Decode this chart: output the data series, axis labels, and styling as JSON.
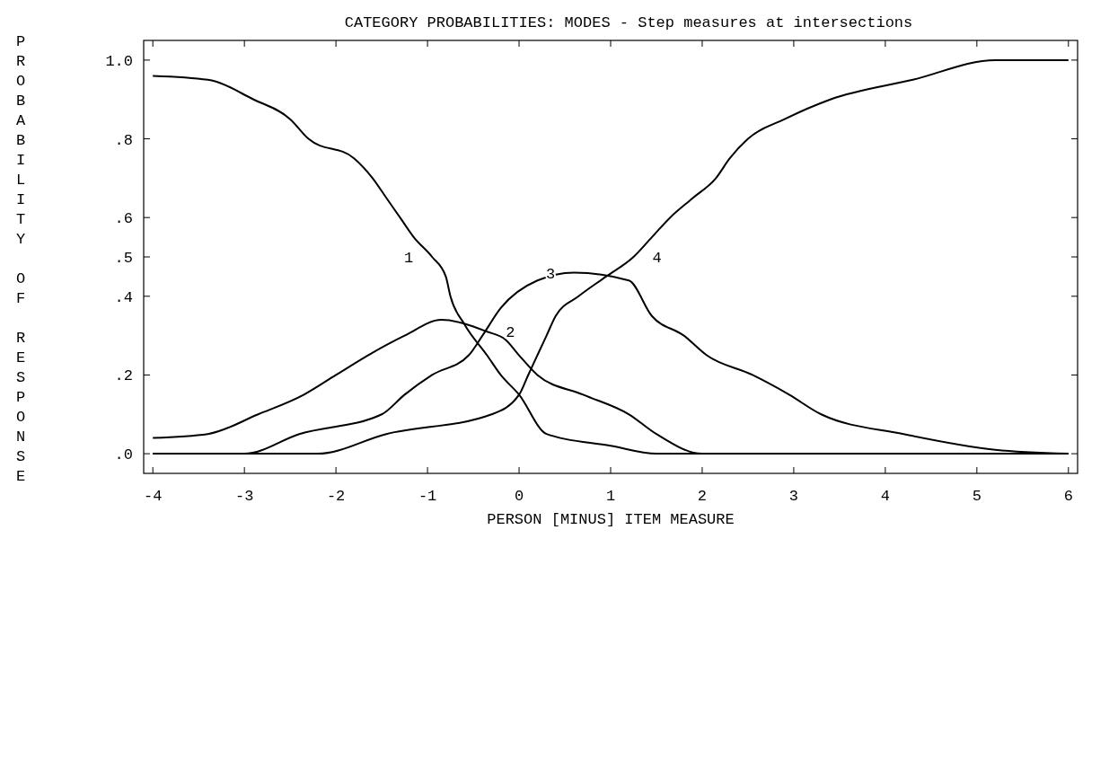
{
  "chart_data": {
    "type": "line",
    "title": "CATEGORY PROBABILITIES: MODES - Step measures at intersections",
    "xlabel": "PERSON [MINUS] ITEM MEASURE",
    "ylabel": "PROBABILITY OF RESPONSE",
    "xlim": [
      -4.1,
      6.1
    ],
    "xticks": [
      -4,
      -3,
      -2,
      -1,
      0,
      1,
      2,
      3,
      4,
      5,
      6
    ],
    "ylim": [
      -0.05,
      1.05
    ],
    "yticks": [
      {
        "value": 0,
        "label": ".0"
      },
      {
        "value": 0.2,
        "label": ".2"
      },
      {
        "value": 0.4,
        "label": ".4"
      },
      {
        "value": 0.5,
        "label": ".5"
      },
      {
        "value": 0.6,
        "label": ".6"
      },
      {
        "value": 0.8,
        "label": ".8"
      },
      {
        "value": 1,
        "label": "1.0"
      }
    ],
    "grid": false,
    "legend": false,
    "marker": "none",
    "line_style": "solid",
    "series": [
      {
        "name": "1",
        "color": "#000000",
        "x": [
          -4,
          -3.4,
          -2.9,
          -2.5,
          -2.3,
          -1.8,
          -1.6,
          -1.45,
          -1.3,
          -1.15,
          -0.95,
          -0.8,
          -0.75,
          -0.6,
          -0.35,
          -0.2,
          0,
          0.3,
          1,
          1.5,
          6
        ],
        "values": [
          0.96,
          0.95,
          0.9,
          0.85,
          0.8,
          0.75,
          0.7,
          0.65,
          0.6,
          0.55,
          0.5,
          0.45,
          0.4,
          0.33,
          0.25,
          0.2,
          0.15,
          0.05,
          0.02,
          0,
          0
        ]
      },
      {
        "name": "2",
        "color": "#000000",
        "x": [
          -4,
          -3.4,
          -2.85,
          -2.35,
          -2,
          -1.65,
          -1.25,
          -0.85,
          -0.35,
          -0.15,
          0,
          0.2,
          0.7,
          1.2,
          1.5,
          2,
          6
        ],
        "values": [
          0.04,
          0.05,
          0.1,
          0.15,
          0.2,
          0.25,
          0.3,
          0.34,
          0.31,
          0.29,
          0.25,
          0.2,
          0.15,
          0.1,
          0.05,
          0,
          0
        ]
      },
      {
        "name": "3",
        "color": "#000000",
        "x": [
          -4,
          -3,
          -2.4,
          -1.5,
          -1.25,
          -0.95,
          -0.55,
          -0.4,
          -0.2,
          0.2,
          0.6,
          1.2,
          1.45,
          1.8,
          2.05,
          2.55,
          2.95,
          3.3,
          4.2,
          5.2,
          6
        ],
        "values": [
          0,
          0,
          0.05,
          0.1,
          0.15,
          0.2,
          0.25,
          0.3,
          0.37,
          0.44,
          0.46,
          0.44,
          0.35,
          0.3,
          0.25,
          0.2,
          0.15,
          0.1,
          0.05,
          0.01,
          0
        ]
      },
      {
        "name": "4",
        "color": "#000000",
        "x": [
          -4,
          -2.2,
          -1.45,
          -0.3,
          0,
          0.1,
          0.2,
          0.3,
          0.4,
          0.65,
          0.95,
          1.25,
          1.45,
          1.65,
          1.9,
          2.15,
          2.3,
          2.5,
          2.9,
          3.4,
          4.3,
          5.2,
          6
        ],
        "values": [
          0,
          0,
          0.05,
          0.1,
          0.15,
          0.2,
          0.25,
          0.3,
          0.35,
          0.4,
          0.45,
          0.5,
          0.55,
          0.6,
          0.65,
          0.7,
          0.75,
          0.8,
          0.85,
          0.9,
          0.95,
          1,
          1
        ]
      }
    ]
  }
}
